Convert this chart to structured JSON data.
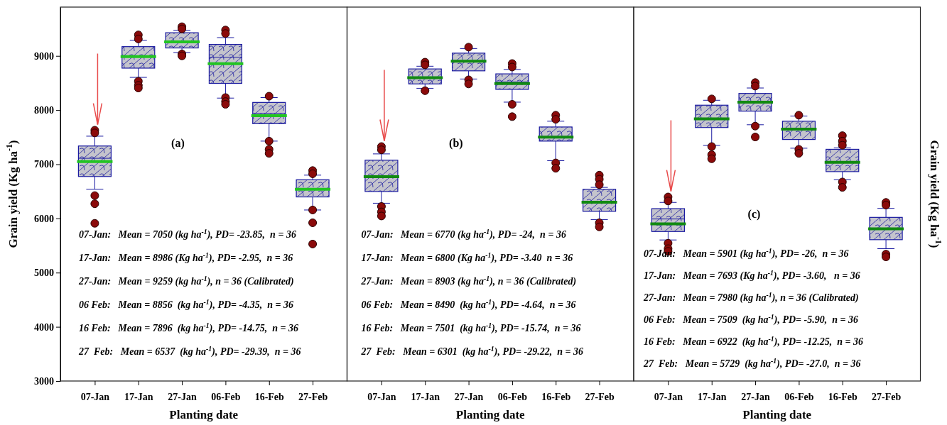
{
  "chart_data": [
    {
      "type": "box",
      "title": "(a)",
      "xlabel": "Planting date",
      "ylabel": "Grain yield (Kg ha$^{-1}$)",
      "categories": [
        "07-Jan",
        "17-Jan",
        "27-Jan",
        "06-Feb",
        "16-Feb",
        "27-Feb"
      ],
      "ylim": [
        3000,
        9900
      ],
      "yticks": [
        3000,
        4000,
        5000,
        6000,
        7000,
        8000,
        9000
      ],
      "series": [
        {
          "color": "#1a1aa0",
          "boxes": [
            {
              "low": 6538,
              "q1": 6774,
              "median": 7110,
              "q3": 7337,
              "high": 7518,
              "mean": 7050,
              "outliers": [
                7628,
                7578,
                6422,
                6271,
                5910
              ]
            },
            {
              "low": 8603,
              "q1": 8774,
              "median": 8985,
              "q3": 9171,
              "high": 9286,
              "mean": 8986,
              "outliers": [
                9387,
                9312,
                8533,
                8457,
                8407
              ]
            },
            {
              "low": 9060,
              "q1": 9146,
              "median": 9261,
              "q3": 9427,
              "high": 9472,
              "mean": 9259,
              "outliers": [
                9538,
                9497,
                9035,
                9000
              ]
            },
            {
              "low": 8221,
              "q1": 8492,
              "median": 8975,
              "q3": 9211,
              "high": 9337,
              "mean": 8856,
              "outliers": [
                9477,
                9412,
                8231,
                8156,
                8106
              ]
            },
            {
              "low": 7427,
              "q1": 7749,
              "median": 7940,
              "q3": 8141,
              "high": 8231,
              "mean": 7896,
              "outliers": [
                8256,
                7427,
                7276,
                7201
              ]
            },
            {
              "low": 6156,
              "q1": 6397,
              "median": 6538,
              "q3": 6714,
              "high": 6799,
              "mean": 6537,
              "outliers": [
                6884,
                6824,
                6156,
                5920,
                5528
              ]
            }
          ]
        }
      ],
      "annotations": [
        "07-Jan:   Mean = 7050 (kg ha$^{-1}$), PD= -23.85,  n = 36",
        "17-Jan:   Mean = 8986 (Kg ha$^{-1}$), PD= -2.95,  n = 36",
        "27-Jan:   Mean = 9259 (kg ha$^{-1}$), n = 36 (Calibrated)",
        "06 Feb:   Mean = 8856  (kg ha$^{-1}$), PD= -4.35,  n = 36",
        "16 Feb:   Mean = 7896  (kg ha$^{-1}$), PD= -14.75,  n = 36",
        "27  Feb:   Mean = 6537  (kg ha$^{-1}$), PD= -29.39,  n = 36"
      ]
    },
    {
      "type": "box",
      "title": "(b)",
      "xlabel": "Planting date",
      "categories": [
        "07-Jan",
        "17-Jan",
        "27-Jan",
        "06-Feb",
        "16-Feb",
        "27-Feb"
      ],
      "ylim": [
        3000,
        9900
      ],
      "yticks": [
        3000,
        4000,
        5000,
        6000,
        7000,
        8000,
        9000
      ],
      "tick_labels": "x",
      "series": [
        {
          "color": "#1a1aa0",
          "boxes": [
            {
              "low": 6281,
              "q1": 6497,
              "median": 6769,
              "q3": 7075,
              "high": 7191,
              "mean": 6770,
              "outliers": [
                7327,
                7266,
                6221,
                6121,
                6045
              ]
            },
            {
              "low": 8402,
              "q1": 8482,
              "median": 8598,
              "q3": 8759,
              "high": 8809,
              "mean": 8598,
              "outliers": [
                8884,
                8834,
                8357
              ]
            },
            {
              "low": 8573,
              "q1": 8724,
              "median": 8899,
              "q3": 9050,
              "high": 9136,
              "mean": 8903,
              "outliers": [
                9161,
                8558,
                8482
              ]
            },
            {
              "low": 8146,
              "q1": 8382,
              "median": 8518,
              "q3": 8668,
              "high": 8749,
              "mean": 8490,
              "outliers": [
                8859,
                8794,
                8106,
                7879
              ]
            },
            {
              "low": 7065,
              "q1": 7427,
              "median": 7497,
              "q3": 7688,
              "high": 7794,
              "mean": 7501,
              "outliers": [
                7905,
                7829,
                7025,
                6925
              ]
            },
            {
              "low": 5980,
              "q1": 6131,
              "median": 6296,
              "q3": 6538,
              "high": 6573,
              "mean": 6301,
              "outliers": [
                6799,
                6724,
                6623,
                5920,
                5844
              ]
            }
          ]
        }
      ],
      "annotations": [
        "07-Jan:   Mean = 6770 (kg ha$^{-1}$), PD= -24,  n = 36",
        "17-Jan:   Mean = 6800 (Kg ha$^{-1}$), PD= -3.40  n = 36",
        "27-Jan:   Mean = 8903 (kg ha$^{-1}$), n = 36 (Calibrated)",
        "06 Feb:   Mean = 8490  (kg ha$^{-1}$), PD= -4.64,  n = 36",
        "16 Feb:   Mean = 7501  (kg ha$^{-1}$), PD= -15.74,  n = 36",
        "27  Feb:   Mean = 6301  (kg ha$^{-1}$), PD= -29.22,  n = 36"
      ]
    },
    {
      "type": "box",
      "title": "(c)",
      "xlabel": "Planting date",
      "y2label": "Grain yield (Kg ha$^{-1}$)",
      "categories": [
        "07-Jan",
        "17-Jan",
        "27-Jan",
        "06-Feb",
        "16-Feb",
        "27-Feb"
      ],
      "ylim": [
        3000,
        9900
      ],
      "yticks": [
        3000,
        4000,
        5000,
        6000,
        7000,
        8000,
        9000
      ],
      "tick_labels": "x",
      "series": [
        {
          "color": "#1a1aa0",
          "boxes": [
            {
              "low": 5603,
              "q1": 5759,
              "median": 5990,
              "q3": 6181,
              "high": 6296,
              "mean": 5901,
              "outliers": [
                6397,
                6322,
                5543,
                5442,
                5392
              ]
            },
            {
              "low": 7347,
              "q1": 7678,
              "median": 7839,
              "q3": 8090,
              "high": 8181,
              "mean": 7839,
              "outliers": [
                8206,
                7327,
                7176,
                7101
              ]
            },
            {
              "low": 7729,
              "q1": 7980,
              "median": 8146,
              "q3": 8307,
              "high": 8407,
              "mean": 8146,
              "outliers": [
                8508,
                8442,
                7704,
                7503
              ]
            },
            {
              "low": 7296,
              "q1": 7457,
              "median": 7648,
              "q3": 7794,
              "high": 7889,
              "mean": 7648,
              "outliers": [
                7905,
                7276,
                7201
              ]
            },
            {
              "low": 6714,
              "q1": 6864,
              "median": 7035,
              "q3": 7276,
              "high": 7302,
              "mean": 7035,
              "outliers": [
                7528,
                7427,
                7352,
                6673,
                6573
              ]
            },
            {
              "low": 5442,
              "q1": 5608,
              "median": 5809,
              "q3": 6020,
              "high": 6186,
              "mean": 5809,
              "outliers": [
                6296,
                6246,
                5342,
                5291
              ]
            }
          ]
        }
      ],
      "annotations": [
        "07-Jan:   Mean = 5901 (kg ha$^{-1}$), PD= -26,  n = 36",
        "17-Jan:   Mean = 7693 (Kg ha$^{-1}$), PD= -3.60,   n = 36",
        "27-Jan:   Mean = 7980 (kg ha$^{-1}$), n = 36 (Calibrated)",
        "06 Feb:   Mean = 7509  (kg ha$^{-1}$), PD= -5.90,  n = 36",
        "16 Feb:   Mean = 6922  (kg ha$^{-1}$), PD= -12.25,  n = 36",
        "27  Feb:   Mean = 5729  (kg ha$^{-1}$), PD= -27.0,  n = 36"
      ]
    }
  ]
}
